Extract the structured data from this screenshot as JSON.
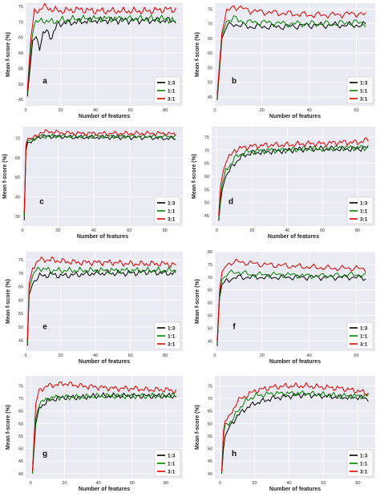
{
  "figure": {
    "ylabel": "Mean f-score (%)",
    "xlabel": "Number of features"
  },
  "series_meta": [
    {
      "name": "1:3",
      "color": "#000000"
    },
    {
      "name": "1:1",
      "color": "#008000"
    },
    {
      "name": "3:1",
      "color": "#e00000"
    }
  ],
  "chart_data": [
    {
      "type": "line",
      "panel_label": "a",
      "ylabel": "Mean f-score (%)",
      "xlabel": "Number of features",
      "xlim": [
        0,
        90
      ],
      "ylim": [
        43,
        76
      ],
      "xticks": [
        0,
        20,
        40,
        60,
        80
      ],
      "yticks": [
        45,
        50,
        55,
        60,
        65,
        70,
        75
      ],
      "grid": true,
      "legend": "bottom-right",
      "series": [
        {
          "name": "1:3",
          "color": "#000000",
          "x": [
            1,
            4,
            6,
            8,
            10,
            12,
            15,
            18,
            20,
            30,
            40,
            50,
            60,
            70,
            80,
            86
          ],
          "y": [
            46,
            64,
            65,
            62,
            66,
            67,
            65,
            69,
            69.5,
            70,
            70.5,
            70.5,
            70.5,
            70.5,
            70.5,
            70.5
          ]
        },
        {
          "name": "1:1",
          "color": "#008000",
          "x": [
            1,
            3,
            5,
            8,
            10,
            15,
            20,
            30,
            40,
            50,
            60,
            70,
            80,
            86
          ],
          "y": [
            47,
            62,
            70,
            70,
            70.5,
            70,
            70.5,
            71,
            71,
            71,
            71,
            71,
            71,
            70
          ]
        },
        {
          "name": "3:1",
          "color": "#e00000",
          "x": [
            1,
            3,
            5,
            8,
            10,
            15,
            20,
            30,
            40,
            50,
            60,
            70,
            80,
            86
          ],
          "y": [
            48,
            65,
            73,
            74,
            75,
            74,
            73.5,
            74,
            73.5,
            73.5,
            73.5,
            73.5,
            74,
            74
          ]
        }
      ]
    },
    {
      "type": "line",
      "panel_label": "b",
      "ylabel": "Mean f-score (%)",
      "xlabel": "Number of features",
      "xlim": [
        0,
        68
      ],
      "ylim": [
        42,
        77
      ],
      "xticks": [
        0,
        20,
        40,
        60
      ],
      "yticks": [
        45,
        50,
        55,
        60,
        65,
        70,
        75
      ],
      "grid": true,
      "legend": "bottom-right",
      "series": [
        {
          "name": "1:3",
          "color": "#000000",
          "x": [
            1,
            3,
            5,
            8,
            10,
            15,
            20,
            30,
            40,
            50,
            60,
            64
          ],
          "y": [
            44,
            65,
            69,
            70,
            69.5,
            69,
            69,
            69,
            69.5,
            69.5,
            69.5,
            69.5
          ]
        },
        {
          "name": "1:1",
          "color": "#008000",
          "x": [
            1,
            3,
            5,
            8,
            10,
            15,
            20,
            30,
            40,
            50,
            60,
            64
          ],
          "y": [
            45,
            66,
            71,
            72,
            71,
            70.5,
            70.5,
            70,
            70,
            70,
            70.5,
            70
          ]
        },
        {
          "name": "3:1",
          "color": "#e00000",
          "x": [
            1,
            3,
            5,
            8,
            10,
            15,
            20,
            30,
            40,
            50,
            60,
            64
          ],
          "y": [
            46,
            67,
            74,
            76,
            75.5,
            74.5,
            74,
            73.5,
            73,
            73,
            73.5,
            73
          ]
        }
      ]
    },
    {
      "type": "line",
      "panel_label": "c",
      "ylabel": "Mean f-score (%)",
      "xlabel": "Number of features",
      "xlim": [
        0,
        90
      ],
      "ylim": [
        25,
        76
      ],
      "xticks": [
        0,
        20,
        40,
        60,
        80
      ],
      "yticks": [
        30,
        40,
        50,
        60,
        70
      ],
      "grid": true,
      "legend": "bottom-right",
      "series": [
        {
          "name": "1:3",
          "color": "#000000",
          "x": [
            1,
            2,
            3,
            5,
            8,
            10,
            15,
            20,
            30,
            40,
            50,
            60,
            70,
            80,
            86
          ],
          "y": [
            28,
            64,
            68,
            68,
            70,
            71,
            71,
            71,
            70.5,
            70.5,
            70.5,
            70.5,
            70.5,
            70,
            70
          ]
        },
        {
          "name": "1:1",
          "color": "#008000",
          "x": [
            1,
            2,
            3,
            5,
            8,
            10,
            15,
            20,
            30,
            40,
            50,
            60,
            70,
            80,
            86
          ],
          "y": [
            30,
            66,
            69,
            69,
            70.5,
            71,
            71,
            71,
            71,
            71,
            71,
            71,
            71,
            71,
            71
          ]
        },
        {
          "name": "3:1",
          "color": "#e00000",
          "x": [
            1,
            2,
            3,
            5,
            8,
            10,
            15,
            20,
            30,
            40,
            50,
            60,
            70,
            80,
            86
          ],
          "y": [
            32,
            67,
            70,
            70,
            71,
            73,
            73.5,
            73,
            72.5,
            72.5,
            72.5,
            72.5,
            72.5,
            72.5,
            72
          ]
        }
      ]
    },
    {
      "type": "line",
      "panel_label": "d",
      "ylabel": "Mean f-score (%)",
      "xlabel": "Number of features",
      "xlim": [
        -3,
        90
      ],
      "ylim": [
        41,
        79
      ],
      "xticks": [
        0,
        20,
        40,
        60,
        80
      ],
      "yticks": [
        45,
        50,
        55,
        60,
        65,
        70,
        75
      ],
      "grid": true,
      "legend": "bottom-right",
      "series": [
        {
          "name": "1:3",
          "color": "#000000",
          "x": [
            1,
            2,
            3,
            5,
            8,
            10,
            15,
            20,
            30,
            40,
            50,
            60,
            70,
            80,
            86
          ],
          "y": [
            43,
            50,
            55,
            60,
            63,
            65,
            68,
            69,
            69.5,
            70,
            70.5,
            70.5,
            70.5,
            70.5,
            71
          ]
        },
        {
          "name": "1:1",
          "color": "#008000",
          "x": [
            1,
            2,
            3,
            5,
            8,
            10,
            15,
            20,
            30,
            40,
            50,
            60,
            70,
            80,
            86
          ],
          "y": [
            44,
            52,
            57,
            62,
            65,
            67,
            69,
            69.5,
            70,
            70,
            70.5,
            70.5,
            71,
            71,
            71
          ]
        },
        {
          "name": "3:1",
          "color": "#e00000",
          "x": [
            1,
            2,
            3,
            5,
            8,
            10,
            15,
            20,
            30,
            40,
            50,
            60,
            70,
            80,
            86
          ],
          "y": [
            45,
            56,
            60,
            66,
            68,
            70,
            71,
            71.5,
            72,
            72,
            72.5,
            72.5,
            73,
            73,
            74
          ]
        }
      ]
    },
    {
      "type": "line",
      "panel_label": "e",
      "ylabel": "Mean f-score (%)",
      "xlabel": "Number of features",
      "xlim": [
        0,
        90
      ],
      "ylim": [
        41,
        78
      ],
      "xticks": [
        0,
        20,
        40,
        60,
        80
      ],
      "yticks": [
        45,
        50,
        55,
        60,
        65,
        70,
        75
      ],
      "grid": true,
      "legend": "bottom-right",
      "series": [
        {
          "name": "1:3",
          "color": "#000000",
          "x": [
            1,
            2,
            4,
            6,
            8,
            10,
            15,
            20,
            30,
            40,
            50,
            60,
            70,
            80,
            86
          ],
          "y": [
            43,
            62,
            66,
            68,
            69,
            69,
            69.5,
            69,
            69.5,
            70,
            70,
            70,
            70.5,
            70,
            70
          ]
        },
        {
          "name": "1:1",
          "color": "#008000",
          "x": [
            1,
            2,
            4,
            6,
            8,
            10,
            15,
            20,
            30,
            40,
            50,
            60,
            70,
            80,
            86
          ],
          "y": [
            44,
            64,
            69,
            71,
            72,
            71.5,
            71,
            71,
            71,
            71,
            71,
            71,
            71,
            71,
            71
          ]
        },
        {
          "name": "3:1",
          "color": "#e00000",
          "x": [
            1,
            2,
            4,
            6,
            8,
            10,
            15,
            20,
            30,
            40,
            50,
            60,
            70,
            80,
            86
          ],
          "y": [
            45,
            66,
            72,
            74,
            75,
            75,
            75,
            74.5,
            74,
            74,
            74,
            73.5,
            73.5,
            73.5,
            73
          ]
        }
      ]
    },
    {
      "type": "line",
      "panel_label": "f",
      "ylabel": "Mean f-score (%)",
      "xlabel": "Number of features",
      "xlim": [
        0,
        68
      ],
      "ylim": [
        41,
        80
      ],
      "xticks": [
        0,
        20,
        40,
        60
      ],
      "yticks": [
        45,
        50,
        55,
        60,
        65,
        70,
        75,
        80
      ],
      "grid": true,
      "legend": "bottom-right",
      "series": [
        {
          "name": "1:3",
          "color": "#000000",
          "x": [
            1,
            2,
            3,
            5,
            8,
            10,
            15,
            20,
            30,
            40,
            50,
            60,
            64
          ],
          "y": [
            43,
            62,
            67,
            69,
            69.5,
            70,
            70,
            70,
            70,
            70,
            70,
            70,
            69.5
          ]
        },
        {
          "name": "1:1",
          "color": "#008000",
          "x": [
            1,
            2,
            3,
            5,
            8,
            10,
            15,
            20,
            30,
            40,
            50,
            60,
            64
          ],
          "y": [
            44,
            63,
            69,
            71,
            72,
            72,
            71,
            71,
            71,
            70.5,
            70.5,
            71,
            70.5
          ]
        },
        {
          "name": "3:1",
          "color": "#e00000",
          "x": [
            1,
            2,
            3,
            5,
            8,
            10,
            15,
            20,
            30,
            40,
            50,
            60,
            64
          ],
          "y": [
            45,
            65,
            72,
            75,
            76,
            76,
            75.5,
            75,
            74.5,
            74,
            73.5,
            73.5,
            73
          ]
        }
      ]
    },
    {
      "type": "line",
      "panel_label": "g",
      "ylabel": "Mean f-score (%)",
      "xlabel": "Number of features",
      "xlim": [
        -3,
        90
      ],
      "ylim": [
        38,
        79
      ],
      "xticks": [
        0,
        20,
        40,
        60,
        80
      ],
      "yticks": [
        40,
        45,
        50,
        55,
        60,
        65,
        70,
        75
      ],
      "grid": true,
      "legend": "bottom-right",
      "series": [
        {
          "name": "1:3",
          "color": "#000000",
          "x": [
            1,
            2,
            3,
            5,
            8,
            10,
            15,
            20,
            30,
            40,
            50,
            60,
            70,
            80,
            86
          ],
          "y": [
            40,
            50,
            60,
            66,
            68,
            69,
            70,
            70.5,
            70.5,
            71,
            71,
            71,
            71,
            71,
            71
          ]
        },
        {
          "name": "1:1",
          "color": "#008000",
          "x": [
            1,
            2,
            3,
            5,
            8,
            10,
            15,
            20,
            30,
            40,
            50,
            60,
            70,
            80,
            86
          ],
          "y": [
            40,
            52,
            62,
            68,
            69,
            70,
            70.5,
            70.5,
            70.5,
            71,
            71,
            71,
            71,
            71,
            71
          ]
        },
        {
          "name": "3:1",
          "color": "#e00000",
          "x": [
            1,
            2,
            3,
            5,
            8,
            10,
            15,
            20,
            30,
            40,
            50,
            60,
            70,
            80,
            86
          ],
          "y": [
            41,
            54,
            68,
            73,
            74.5,
            75,
            75.5,
            76,
            75,
            74.5,
            74,
            74,
            73.5,
            73.5,
            73
          ]
        }
      ]
    },
    {
      "type": "line",
      "panel_label": "h",
      "ylabel": "Mean f-score (%)",
      "xlabel": "Number of features",
      "xlim": [
        -3,
        90
      ],
      "ylim": [
        38,
        79
      ],
      "xticks": [
        0,
        20,
        40,
        60,
        80
      ],
      "yticks": [
        40,
        45,
        50,
        55,
        60,
        65,
        70,
        75
      ],
      "grid": true,
      "legend": "bottom-right",
      "series": [
        {
          "name": "1:3",
          "color": "#000000",
          "x": [
            1,
            2,
            3,
            5,
            8,
            10,
            15,
            20,
            30,
            40,
            50,
            60,
            70,
            80,
            86
          ],
          "y": [
            40,
            50,
            55,
            58,
            61,
            63,
            66,
            68,
            70,
            71,
            71.5,
            71,
            70.5,
            70.5,
            70
          ]
        },
        {
          "name": "1:1",
          "color": "#008000",
          "x": [
            1,
            2,
            3,
            5,
            8,
            10,
            15,
            20,
            30,
            40,
            50,
            60,
            70,
            80,
            86
          ],
          "y": [
            40,
            55,
            60,
            60,
            62,
            65,
            69,
            71,
            72,
            72,
            72,
            71.5,
            71,
            71,
            71
          ]
        },
        {
          "name": "3:1",
          "color": "#e00000",
          "x": [
            1,
            2,
            3,
            5,
            8,
            10,
            15,
            20,
            30,
            40,
            50,
            60,
            70,
            80,
            86
          ],
          "y": [
            41,
            57,
            61,
            62,
            66,
            69,
            71,
            73,
            74.5,
            75,
            75,
            74.5,
            74,
            73,
            72
          ]
        }
      ]
    }
  ]
}
